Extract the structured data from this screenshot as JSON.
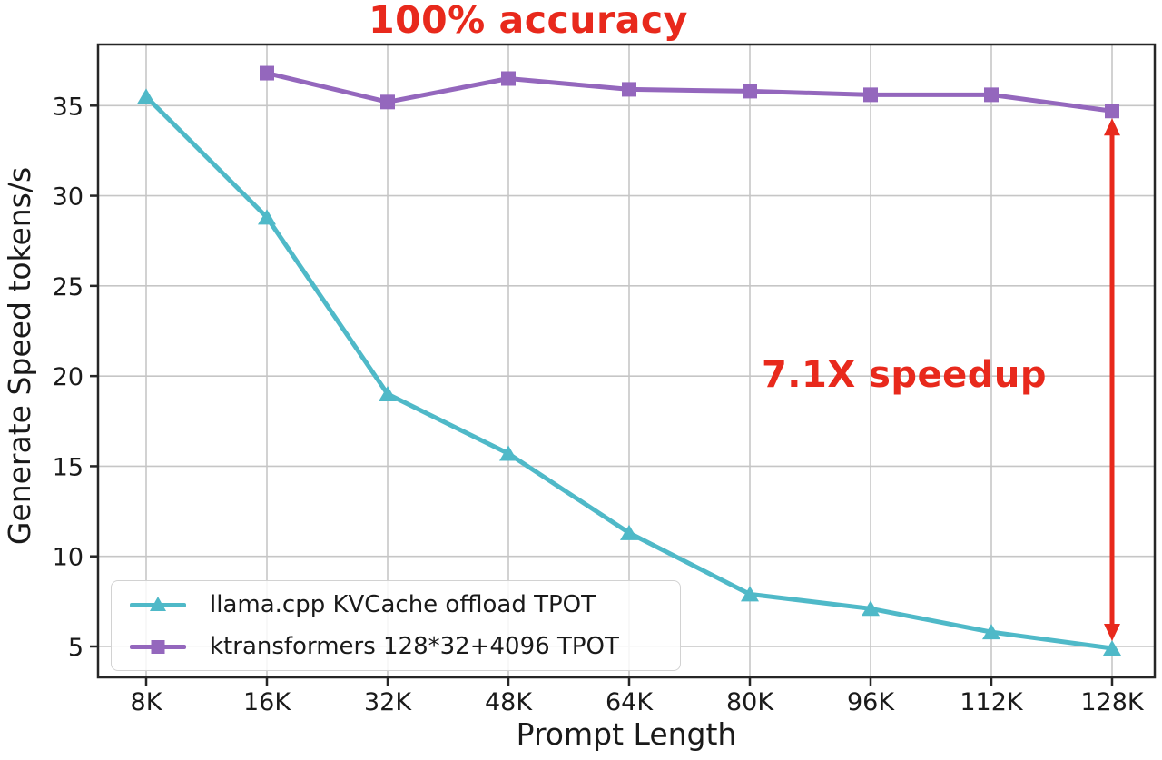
{
  "title": {
    "text": "100% accuracy",
    "color": "#e8291c"
  },
  "annotation": {
    "text": "7.1X speedup",
    "color": "#e8291c"
  },
  "chart_data": {
    "type": "line",
    "categories": [
      "8K",
      "16K",
      "32K",
      "48K",
      "64K",
      "80K",
      "96K",
      "112K",
      "128K"
    ],
    "series": [
      {
        "name": "llama.cpp KVCache offload TPOT",
        "color": "#4fb9c8",
        "marker": "triangle",
        "values": [
          35.5,
          28.8,
          19.0,
          15.7,
          11.3,
          7.9,
          7.1,
          5.8,
          4.9
        ]
      },
      {
        "name": "ktransformers 128*32+4096 TPOT",
        "color": "#9467bd",
        "marker": "square",
        "values": [
          null,
          36.8,
          35.2,
          36.5,
          35.9,
          35.8,
          35.6,
          35.6,
          34.7
        ]
      }
    ],
    "title": "100% accuracy",
    "xlabel": "Prompt Length",
    "ylabel": "Generate Speed tokens/s",
    "yticks": [
      5,
      10,
      15,
      20,
      25,
      30,
      35
    ],
    "ylim": [
      3.3,
      38.4
    ],
    "grid": true,
    "legend_position": "lower left",
    "annotation_arrow": {
      "x_category": "128K",
      "from_value": 34.7,
      "to_value": 4.9,
      "color": "#e8291c",
      "label": "7.1X speedup"
    }
  },
  "style_colors": {
    "grid": "#c6c6c6",
    "spine": "#262626",
    "tick_text": "#1a1a1a"
  }
}
